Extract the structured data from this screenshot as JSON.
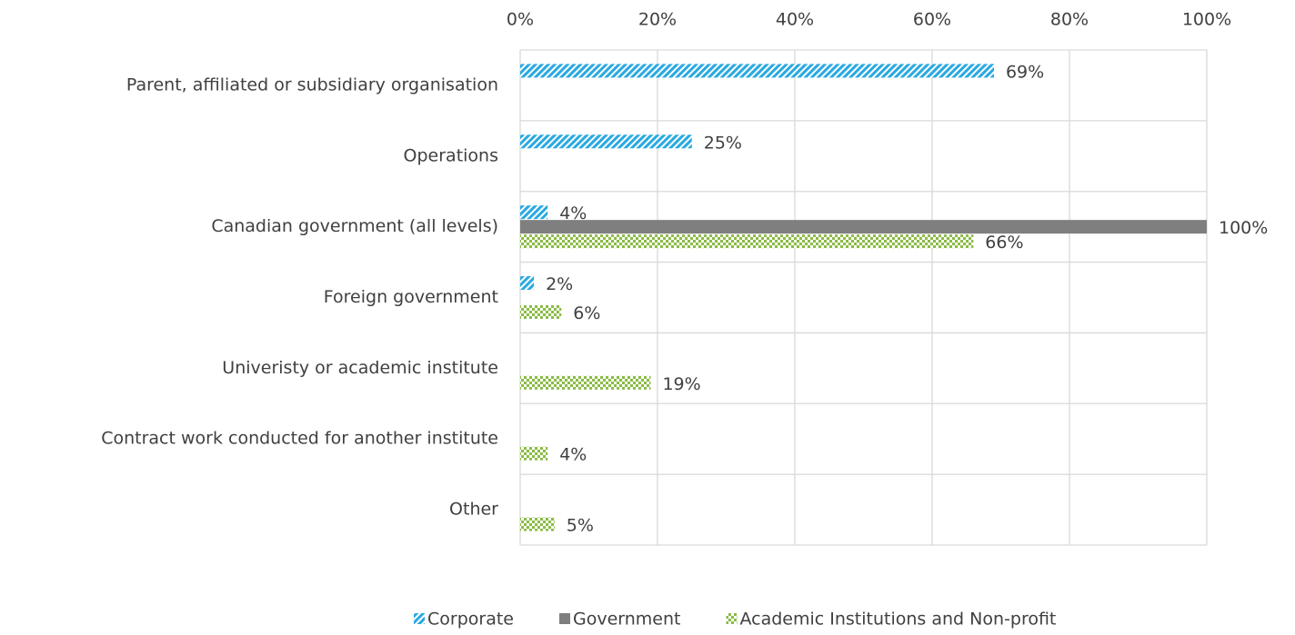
{
  "chart_data": {
    "type": "hbar",
    "categories": [
      "Parent, affiliated or subsidiary organisation",
      "Operations",
      "Canadian government (all levels)",
      "Foreign government",
      "Univeristy or academic institute",
      "Contract work conducted for another institute",
      "Other"
    ],
    "series": [
      {
        "name": "Corporate",
        "color": "#29a9e0",
        "pattern": "diagonal",
        "values": [
          69,
          25,
          4,
          2,
          null,
          null,
          null
        ],
        "value_labels": [
          "69%",
          "25%",
          "4%",
          "2%",
          null,
          null,
          null
        ]
      },
      {
        "name": "Government",
        "color": "#7f7f7f",
        "pattern": "solid",
        "values": [
          null,
          null,
          100,
          null,
          null,
          null,
          null
        ],
        "value_labels": [
          null,
          null,
          "100%",
          null,
          null,
          null,
          null
        ]
      },
      {
        "name": "Academic Institutions and Non-profit",
        "color": "#8bbb45",
        "pattern": "checker",
        "values": [
          null,
          null,
          66,
          6,
          19,
          4,
          5
        ],
        "value_labels": [
          null,
          null,
          "66%",
          "6%",
          "19%",
          "4%",
          "5%"
        ]
      }
    ],
    "xlim": [
      0,
      100
    ],
    "xticks": [
      {
        "value": 0,
        "label": "0%"
      },
      {
        "value": 20,
        "label": "20%"
      },
      {
        "value": 40,
        "label": "40%"
      },
      {
        "value": 60,
        "label": "60%"
      },
      {
        "value": 80,
        "label": "80%"
      },
      {
        "value": 100,
        "label": "100%"
      }
    ],
    "grid": true,
    "legend": "bottom"
  }
}
